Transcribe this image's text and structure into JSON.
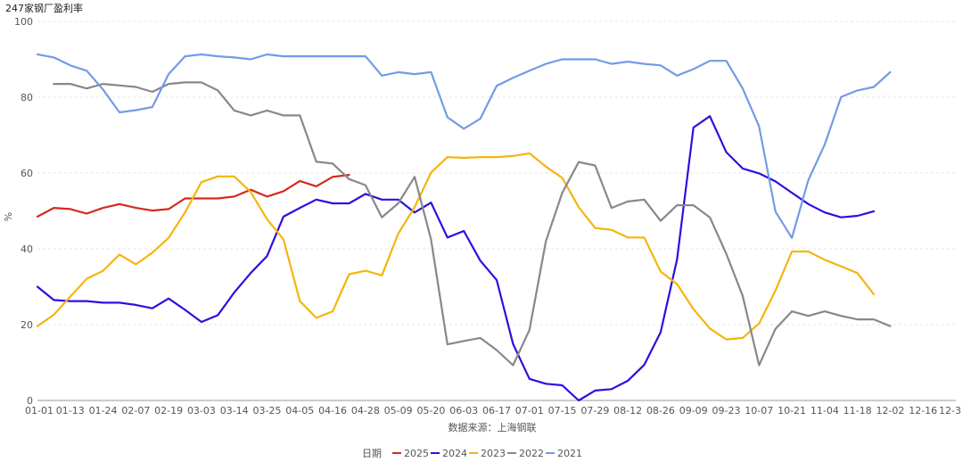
{
  "chart_data": {
    "type": "line",
    "title": "247家钢厂盈利率",
    "ylabel": "%",
    "xlabel": "数据来源：上海钢联",
    "legend_title": "日期",
    "legend_position": "bottom",
    "ylim": [
      0,
      100
    ],
    "yticks": [
      0,
      20,
      40,
      60,
      80,
      100
    ],
    "grid": "horizontal-dashed",
    "categories": [
      "01-01",
      "01-13",
      "01-24",
      "02-07",
      "02-19",
      "03-03",
      "03-14",
      "03-25",
      "04-05",
      "04-16",
      "04-28",
      "05-09",
      "05-20",
      "06-03",
      "06-17",
      "07-01",
      "07-15",
      "07-29",
      "08-12",
      "08-26",
      "09-09",
      "09-23",
      "10-07",
      "10-21",
      "11-04",
      "11-18",
      "12-02",
      "12-16",
      "12-3"
    ],
    "series": [
      {
        "name": "2025",
        "color": "#d32a1f",
        "points": [
          [
            0,
            48.5
          ],
          [
            0.5,
            50.8
          ],
          [
            1,
            50.5
          ],
          [
            1.5,
            49.3
          ],
          [
            2,
            50.8
          ],
          [
            2.5,
            51.8
          ],
          [
            3,
            50.8
          ],
          [
            3.5,
            50.1
          ],
          [
            4,
            50.5
          ],
          [
            4.5,
            53.3
          ],
          [
            5,
            53.3
          ],
          [
            5.5,
            53.3
          ],
          [
            6,
            53.8
          ],
          [
            6.5,
            55.6
          ],
          [
            7,
            53.8
          ],
          [
            7.5,
            55.2
          ],
          [
            8,
            57.9
          ],
          [
            8.5,
            56.5
          ],
          [
            9,
            59.0
          ],
          [
            9.5,
            59.5
          ]
        ]
      },
      {
        "name": "2024",
        "color": "#2a10e0",
        "points": [
          [
            0,
            30.0
          ],
          [
            0.5,
            26.5
          ],
          [
            1,
            26.2
          ],
          [
            1.5,
            26.2
          ],
          [
            2,
            25.8
          ],
          [
            2.5,
            25.8
          ],
          [
            3,
            25.2
          ],
          [
            3.5,
            24.3
          ],
          [
            4,
            26.9
          ],
          [
            4.5,
            23.9
          ],
          [
            5,
            20.7
          ],
          [
            5.5,
            22.5
          ],
          [
            6,
            28.5
          ],
          [
            6.5,
            33.6
          ],
          [
            7,
            38.1
          ],
          [
            7.5,
            48.5
          ],
          [
            8,
            50.8
          ],
          [
            8.5,
            53.0
          ],
          [
            9,
            52.0
          ],
          [
            9.5,
            52.0
          ],
          [
            10,
            54.5
          ],
          [
            10.5,
            53.0
          ],
          [
            11,
            53.0
          ],
          [
            11.5,
            49.6
          ],
          [
            12,
            52.2
          ],
          [
            12.5,
            43.0
          ],
          [
            13,
            44.7
          ],
          [
            13.5,
            36.9
          ],
          [
            14,
            31.8
          ],
          [
            14.5,
            14.9
          ],
          [
            15,
            5.7
          ],
          [
            15.5,
            4.4
          ],
          [
            16,
            4.0
          ],
          [
            16.5,
            0.0
          ],
          [
            17,
            2.6
          ],
          [
            17.5,
            3.0
          ],
          [
            18,
            5.2
          ],
          [
            18.5,
            9.4
          ],
          [
            19,
            18.0
          ],
          [
            19.5,
            37.2
          ],
          [
            20,
            72.0
          ],
          [
            20.5,
            75.0
          ],
          [
            21,
            65.5
          ],
          [
            21.5,
            61.2
          ],
          [
            22,
            59.9
          ],
          [
            22.5,
            57.8
          ],
          [
            23,
            54.8
          ],
          [
            23.5,
            51.8
          ],
          [
            24,
            49.6
          ],
          [
            24.5,
            48.3
          ],
          [
            25,
            48.7
          ],
          [
            25.5,
            49.9
          ]
        ]
      },
      {
        "name": "2023",
        "color": "#f6b40e",
        "points": [
          [
            0,
            19.6
          ],
          [
            0.5,
            22.6
          ],
          [
            1,
            27.4
          ],
          [
            1.5,
            32.1
          ],
          [
            2,
            34.2
          ],
          [
            2.5,
            38.5
          ],
          [
            3,
            35.9
          ],
          [
            3.5,
            39.0
          ],
          [
            4,
            42.9
          ],
          [
            4.5,
            49.6
          ],
          [
            5,
            57.6
          ],
          [
            5.5,
            59.1
          ],
          [
            6,
            59.1
          ],
          [
            6.5,
            55.0
          ],
          [
            7,
            47.8
          ],
          [
            7.5,
            42.5
          ],
          [
            8,
            26.2
          ],
          [
            8.5,
            21.8
          ],
          [
            9,
            23.5
          ],
          [
            9.5,
            33.3
          ],
          [
            10,
            34.2
          ],
          [
            10.5,
            33.0
          ],
          [
            11,
            44.0
          ],
          [
            11.5,
            51.0
          ],
          [
            12,
            60.1
          ],
          [
            12.5,
            64.2
          ],
          [
            13,
            64.0
          ],
          [
            13.5,
            64.2
          ],
          [
            14,
            64.2
          ],
          [
            14.5,
            64.5
          ],
          [
            15,
            65.2
          ],
          [
            15.5,
            61.7
          ],
          [
            16,
            58.7
          ],
          [
            16.5,
            51.0
          ],
          [
            17,
            45.5
          ],
          [
            17.5,
            45.0
          ],
          [
            18,
            43.0
          ],
          [
            18.5,
            43.0
          ],
          [
            19,
            34.0
          ],
          [
            19.5,
            30.7
          ],
          [
            20,
            24.1
          ],
          [
            20.5,
            19.0
          ],
          [
            21,
            16.1
          ],
          [
            21.5,
            16.5
          ],
          [
            22,
            20.3
          ],
          [
            22.5,
            29.0
          ],
          [
            23,
            39.3
          ],
          [
            23.5,
            39.3
          ],
          [
            24,
            37.1
          ],
          [
            24.5,
            35.4
          ],
          [
            25,
            33.6
          ],
          [
            25.5,
            28.0
          ]
        ]
      },
      {
        "name": "2022",
        "color": "#888888",
        "points": [
          [
            0.5,
            83.5
          ],
          [
            1,
            83.5
          ],
          [
            1.5,
            82.3
          ],
          [
            2,
            83.5
          ],
          [
            2.5,
            83.1
          ],
          [
            3,
            82.7
          ],
          [
            3.5,
            81.4
          ],
          [
            4,
            83.5
          ],
          [
            4.5,
            83.9
          ],
          [
            5,
            83.9
          ],
          [
            5.5,
            81.8
          ],
          [
            6,
            76.5
          ],
          [
            6.5,
            75.2
          ],
          [
            7,
            76.5
          ],
          [
            7.5,
            75.2
          ],
          [
            8,
            75.2
          ],
          [
            8.5,
            63.0
          ],
          [
            9,
            62.5
          ],
          [
            9.5,
            58.4
          ],
          [
            10,
            56.8
          ],
          [
            10.5,
            48.3
          ],
          [
            11,
            52.0
          ],
          [
            11.5,
            59.0
          ],
          [
            12,
            42.5
          ],
          [
            12.5,
            14.8
          ],
          [
            13,
            15.7
          ],
          [
            13.5,
            16.5
          ],
          [
            14,
            13.3
          ],
          [
            14.5,
            9.3
          ],
          [
            15,
            18.6
          ],
          [
            15.5,
            42.0
          ],
          [
            16,
            54.8
          ],
          [
            16.5,
            62.9
          ],
          [
            17,
            62.0
          ],
          [
            17.5,
            50.8
          ],
          [
            18,
            52.5
          ],
          [
            18.5,
            53.0
          ],
          [
            19,
            47.4
          ],
          [
            19.5,
            51.5
          ],
          [
            20,
            51.5
          ],
          [
            20.5,
            48.3
          ],
          [
            21,
            38.7
          ],
          [
            21.5,
            27.6
          ],
          [
            22,
            9.3
          ],
          [
            22.5,
            18.9
          ],
          [
            23,
            23.5
          ],
          [
            23.5,
            22.3
          ],
          [
            24,
            23.5
          ],
          [
            24.5,
            22.3
          ],
          [
            25,
            21.4
          ],
          [
            25.5,
            21.4
          ],
          [
            26,
            19.6
          ]
        ]
      },
      {
        "name": "2021",
        "color": "#729be6",
        "points": [
          [
            0,
            91.3
          ],
          [
            0.5,
            90.5
          ],
          [
            1,
            88.4
          ],
          [
            1.5,
            87.0
          ],
          [
            2,
            82.0
          ],
          [
            2.5,
            76.0
          ],
          [
            3,
            76.6
          ],
          [
            3.5,
            77.4
          ],
          [
            4,
            86.1
          ],
          [
            4.5,
            90.8
          ],
          [
            5,
            91.3
          ],
          [
            5.5,
            90.8
          ],
          [
            6,
            90.5
          ],
          [
            6.5,
            90.0
          ],
          [
            7,
            91.3
          ],
          [
            7.5,
            90.8
          ],
          [
            8,
            90.8
          ],
          [
            8.5,
            90.8
          ],
          [
            9,
            90.8
          ],
          [
            9.5,
            90.8
          ],
          [
            10,
            90.8
          ],
          [
            10.5,
            85.7
          ],
          [
            11,
            86.6
          ],
          [
            11.5,
            86.1
          ],
          [
            12,
            86.6
          ],
          [
            12.5,
            74.7
          ],
          [
            13,
            71.7
          ],
          [
            13.5,
            74.3
          ],
          [
            14,
            83.0
          ],
          [
            14.5,
            85.1
          ],
          [
            15,
            87.0
          ],
          [
            15.5,
            88.8
          ],
          [
            16,
            90.0
          ],
          [
            16.5,
            90.0
          ],
          [
            17,
            90.0
          ],
          [
            17.5,
            88.8
          ],
          [
            18,
            89.4
          ],
          [
            18.5,
            88.8
          ],
          [
            19,
            88.4
          ],
          [
            19.5,
            85.7
          ],
          [
            20,
            87.4
          ],
          [
            20.5,
            89.6
          ],
          [
            21,
            89.6
          ],
          [
            21.5,
            82.3
          ],
          [
            22,
            72.3
          ],
          [
            22.5,
            49.8
          ],
          [
            23,
            42.9
          ],
          [
            23.5,
            58.1
          ],
          [
            24,
            67.5
          ],
          [
            24.5,
            80.1
          ],
          [
            25,
            81.8
          ],
          [
            25.5,
            82.7
          ],
          [
            26,
            86.6
          ]
        ]
      }
    ]
  }
}
